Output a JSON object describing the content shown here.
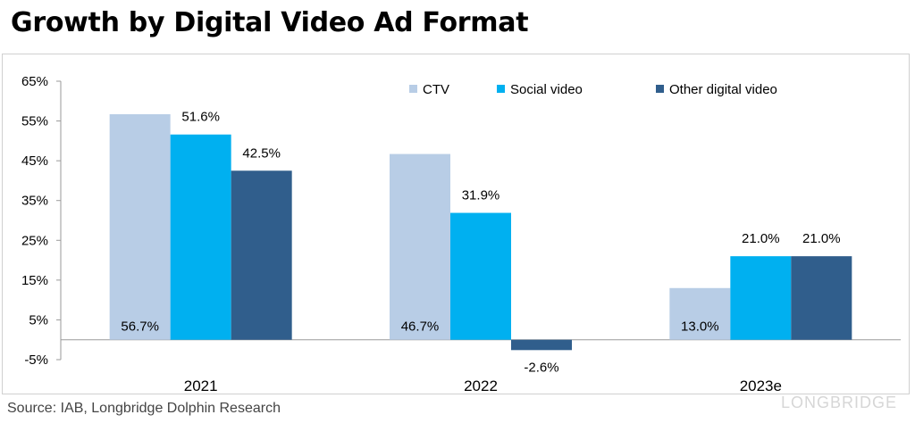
{
  "title": "Growth by Digital Video Ad Format",
  "source": "Source: IAB, Longbridge Dolphin Research",
  "watermark": "LONGBRIDGE",
  "chart_data": {
    "type": "bar",
    "categories": [
      "2021",
      "2022",
      "2023e"
    ],
    "series": [
      {
        "name": "CTV",
        "color": "#b8cde6",
        "values": [
          56.7,
          46.7,
          13.0
        ],
        "labels": [
          "56.7%",
          "46.7%",
          "13.0%"
        ],
        "label_position": "inside-bottom"
      },
      {
        "name": "Social video",
        "color": "#00b0f0",
        "values": [
          51.6,
          31.9,
          21.0
        ],
        "labels": [
          "51.6%",
          "31.9%",
          "21.0%"
        ],
        "label_position": "outside"
      },
      {
        "name": "Other digital video",
        "color": "#305e8c",
        "values": [
          42.5,
          -2.6,
          21.0
        ],
        "labels": [
          "42.5%",
          "-2.6%",
          "21.0%"
        ],
        "label_position": "outside"
      }
    ],
    "y_ticks": [
      "65%",
      "55%",
      "45%",
      "35%",
      "25%",
      "15%",
      "5%",
      "-5%"
    ],
    "ylim": [
      -5,
      65
    ],
    "grid": false,
    "legend": "top-right"
  }
}
